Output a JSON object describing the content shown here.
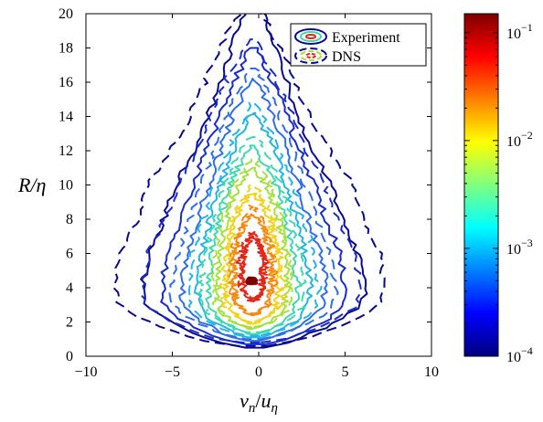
{
  "chart_data": {
    "type": "contour",
    "x_axis": {
      "label_main": "v",
      "label_sub1": "n",
      "label_div": "/",
      "label_main2": "u",
      "label_sub2": "η",
      "range": [
        -10,
        10
      ],
      "ticks": [
        -10,
        -5,
        0,
        5,
        10
      ],
      "tick_labels": [
        "−10",
        "−5",
        "0",
        "5",
        "10"
      ]
    },
    "y_axis": {
      "label": "R/η",
      "range": [
        0,
        20
      ],
      "ticks": [
        0,
        2,
        4,
        6,
        8,
        10,
        12,
        14,
        16,
        18,
        20
      ],
      "tick_labels": [
        "0",
        "2",
        "4",
        "6",
        "8",
        "10",
        "12",
        "14",
        "16",
        "18",
        "20"
      ]
    },
    "colorbar": {
      "scale": "log",
      "range": [
        0.0001,
        0.15
      ],
      "ticks": [
        0.0001,
        0.001,
        0.01,
        0.1
      ],
      "tick_labels": [
        {
          "base": "10",
          "exp": "−4"
        },
        {
          "base": "10",
          "exp": "−3"
        },
        {
          "base": "10",
          "exp": "−2"
        },
        {
          "base": "10",
          "exp": "−1"
        }
      ],
      "colormap": "jet"
    },
    "legend": {
      "position": "top-right",
      "entries": [
        {
          "label": "Experiment",
          "style": "solid"
        },
        {
          "label": "DNS",
          "style": "dashed"
        }
      ]
    },
    "grid": false,
    "levels": [
      {
        "value": 0.00012,
        "color": "#0a0a8c",
        "exp": {
          "cx": -0.3,
          "top": 20.5,
          "bottom": 0.5,
          "widths": [
            [
              0.5,
              4.2
            ],
            [
              2,
              6.0
            ],
            [
              4,
              6.5
            ],
            [
              6,
              6.0
            ],
            [
              8,
              5.2
            ],
            [
              10,
              4.5
            ],
            [
              12,
              3.5
            ],
            [
              14,
              2.6
            ],
            [
              16,
              1.9
            ],
            [
              18,
              1.3
            ],
            [
              20,
              1.0
            ]
          ]
        },
        "dns": {
          "cx": -0.5,
          "top": 20.5,
          "bottom": 0.6,
          "widths": [
            [
              0.6,
              5.5
            ],
            [
              2,
              7.5
            ],
            [
              4,
              7.8
            ],
            [
              6,
              7.5
            ],
            [
              8,
              6.5
            ],
            [
              10,
              6.0
            ],
            [
              12,
              4.6
            ],
            [
              14,
              3.5
            ],
            [
              16,
              2.6
            ],
            [
              18,
              1.8
            ],
            [
              20,
              1.2
            ]
          ]
        }
      },
      {
        "value": 0.0003,
        "color": "#1a2cc8",
        "exp": {
          "cx": -0.3,
          "top": 18.0,
          "bottom": 0.7,
          "widths": [
            [
              0.7,
              3.5
            ],
            [
              2,
              5.0
            ],
            [
              4,
              5.3
            ],
            [
              6,
              5.0
            ],
            [
              8,
              4.2
            ],
            [
              10,
              3.5
            ],
            [
              12,
              2.7
            ],
            [
              14,
              1.9
            ],
            [
              16,
              1.2
            ],
            [
              18,
              0.6
            ]
          ]
        },
        "dns": {
          "cx": -0.4,
          "top": 18.5,
          "bottom": 0.8,
          "widths": [
            [
              0.8,
              4.4
            ],
            [
              2,
              6.0
            ],
            [
              4,
              6.3
            ],
            [
              6,
              6.0
            ],
            [
              8,
              5.0
            ],
            [
              10,
              4.2
            ],
            [
              12,
              3.2
            ],
            [
              14,
              2.4
            ],
            [
              16,
              1.5
            ],
            [
              18,
              0.8
            ]
          ]
        }
      },
      {
        "value": 0.0008,
        "color": "#2f6fe6",
        "exp": {
          "cx": -0.3,
          "top": 16.2,
          "bottom": 0.9,
          "widths": [
            [
              0.9,
              2.6
            ],
            [
              2,
              3.8
            ],
            [
              4,
              4.2
            ],
            [
              6,
              3.9
            ],
            [
              8,
              3.2
            ],
            [
              10,
              2.6
            ],
            [
              12,
              1.9
            ],
            [
              14,
              1.2
            ],
            [
              16,
              0.5
            ]
          ]
        },
        "dns": {
          "cx": -0.3,
          "top": 16.8,
          "bottom": 1.0,
          "widths": [
            [
              1.0,
              3.2
            ],
            [
              2,
              4.5
            ],
            [
              4,
              4.8
            ],
            [
              6,
              4.4
            ],
            [
              8,
              3.7
            ],
            [
              10,
              3.0
            ],
            [
              12,
              2.3
            ],
            [
              14,
              1.5
            ],
            [
              16,
              0.7
            ]
          ]
        }
      },
      {
        "value": 0.002,
        "color": "#24b4e6",
        "exp": {
          "cx": -0.3,
          "top": 14.2,
          "bottom": 1.1,
          "widths": [
            [
              1.1,
              2.0
            ],
            [
              2,
              3.0
            ],
            [
              4,
              3.3
            ],
            [
              6,
              3.0
            ],
            [
              8,
              2.5
            ],
            [
              10,
              1.9
            ],
            [
              12,
              1.2
            ],
            [
              14,
              0.5
            ]
          ]
        },
        "dns": {
          "cx": -0.3,
          "top": 14.8,
          "bottom": 1.2,
          "widths": [
            [
              1.2,
              2.5
            ],
            [
              2,
              3.6
            ],
            [
              4,
              3.8
            ],
            [
              6,
              3.5
            ],
            [
              8,
              2.9
            ],
            [
              10,
              2.2
            ],
            [
              12,
              1.5
            ],
            [
              14,
              0.7
            ]
          ]
        }
      },
      {
        "value": 0.005,
        "color": "#40d8b0",
        "exp": {
          "cx": -0.35,
          "top": 12.3,
          "bottom": 1.3,
          "widths": [
            [
              1.3,
              1.5
            ],
            [
              2,
              2.3
            ],
            [
              4,
              2.6
            ],
            [
              6,
              2.4
            ],
            [
              8,
              1.9
            ],
            [
              10,
              1.3
            ],
            [
              12,
              0.5
            ]
          ]
        },
        "dns": {
          "cx": -0.35,
          "top": 12.8,
          "bottom": 1.4,
          "widths": [
            [
              1.4,
              1.9
            ],
            [
              2,
              2.8
            ],
            [
              4,
              3.0
            ],
            [
              6,
              2.7
            ],
            [
              8,
              2.2
            ],
            [
              10,
              1.6
            ],
            [
              12,
              0.8
            ]
          ]
        }
      },
      {
        "value": 0.01,
        "color": "#a8e040",
        "exp": {
          "cx": -0.35,
          "top": 11.0,
          "bottom": 1.6,
          "widths": [
            [
              1.6,
              1.1
            ],
            [
              2,
              1.7
            ],
            [
              4,
              2.0
            ],
            [
              6,
              1.9
            ],
            [
              8,
              1.5
            ],
            [
              10,
              0.8
            ],
            [
              11,
              0.3
            ]
          ]
        },
        "dns": {
          "cx": -0.35,
          "top": 11.5,
          "bottom": 1.7,
          "widths": [
            [
              1.7,
              1.4
            ],
            [
              2,
              2.1
            ],
            [
              4,
              2.3
            ],
            [
              6,
              2.1
            ],
            [
              8,
              1.7
            ],
            [
              10,
              1.1
            ],
            [
              11,
              0.5
            ]
          ]
        }
      },
      {
        "value": 0.02,
        "color": "#f2d21e",
        "exp": {
          "cx": -0.35,
          "top": 9.5,
          "bottom": 1.9,
          "widths": [
            [
              1.9,
              0.8
            ],
            [
              2.5,
              1.3
            ],
            [
              4,
              1.5
            ],
            [
              6,
              1.4
            ],
            [
              8,
              1.0
            ],
            [
              9.5,
              0.3
            ]
          ]
        },
        "dns": {
          "cx": -0.35,
          "top": 10.0,
          "bottom": 2.0,
          "widths": [
            [
              2.0,
              1.0
            ],
            [
              2.5,
              1.6
            ],
            [
              4,
              1.8
            ],
            [
              6,
              1.6
            ],
            [
              8,
              1.2
            ],
            [
              9.5,
              0.5
            ]
          ]
        }
      },
      {
        "value": 0.04,
        "color": "#f58a12",
        "exp": {
          "cx": -0.35,
          "top": 8.3,
          "bottom": 2.4,
          "widths": [
            [
              2.4,
              0.6
            ],
            [
              3,
              0.9
            ],
            [
              4.5,
              1.1
            ],
            [
              6,
              1.0
            ],
            [
              7.5,
              0.6
            ],
            [
              8.3,
              0.2
            ]
          ]
        },
        "dns": {
          "cx": -0.35,
          "top": 8.8,
          "bottom": 2.5,
          "widths": [
            [
              2.5,
              0.8
            ],
            [
              3,
              1.1
            ],
            [
              4.5,
              1.3
            ],
            [
              6,
              1.2
            ],
            [
              7.5,
              0.8
            ],
            [
              8.5,
              0.3
            ]
          ]
        }
      },
      {
        "value": 0.08,
        "color": "#e3261a",
        "exp": {
          "cx": -0.35,
          "top": 7.0,
          "bottom": 3.2,
          "widths": [
            [
              3.2,
              0.35
            ],
            [
              4,
              0.55
            ],
            [
              5.5,
              0.6
            ],
            [
              6.5,
              0.4
            ],
            [
              7.0,
              0.15
            ]
          ]
        },
        "dns": {
          "cx": -0.35,
          "top": 7.3,
          "bottom": 3.4,
          "widths": [
            [
              3.4,
              0.45
            ],
            [
              4,
              0.7
            ],
            [
              5.5,
              0.75
            ],
            [
              6.5,
              0.5
            ],
            [
              7.2,
              0.2
            ]
          ]
        }
      },
      {
        "value": 0.13,
        "color": "#7a0505",
        "exp": {
          "cx": -0.4,
          "top": 4.6,
          "bottom": 4.2,
          "widths": [
            [
              4.2,
              0.1
            ],
            [
              4.4,
              0.15
            ],
            [
              4.6,
              0.05
            ]
          ]
        },
        "dns": null
      }
    ]
  }
}
